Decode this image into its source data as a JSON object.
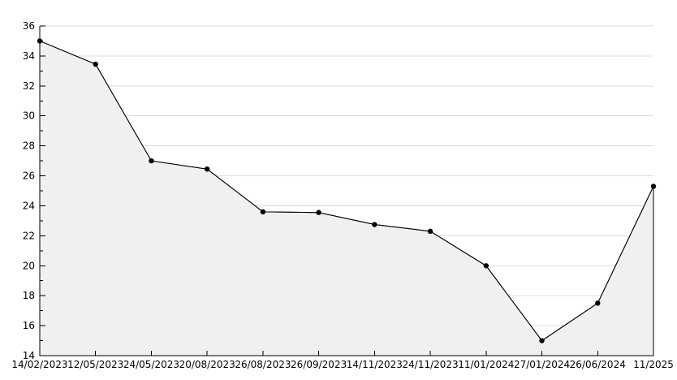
{
  "chart_data": {
    "type": "area",
    "title": "",
    "xlabel": "",
    "ylabel": "",
    "legend": "none",
    "grid": "horizontal-major",
    "x_labels": [
      "14/02/2023",
      "12/05/2023",
      "24/05/2023",
      "20/08/2023",
      "26/08/2023",
      "26/09/2023",
      "14/11/2023",
      "24/11/2023",
      "11/01/2024",
      "27/01/2024",
      "26/06/2024",
      "11/2025"
    ],
    "values": [
      35.0,
      33.45,
      27.0,
      26.45,
      23.6,
      23.55,
      22.75,
      22.3,
      20.0,
      15.0,
      17.5,
      25.3
    ],
    "y_tick_labels": [
      "36",
      "34",
      "32",
      "30",
      "28",
      "26",
      "24",
      "22",
      "20",
      "18",
      "16",
      "14"
    ],
    "ylim": [
      14,
      36
    ],
    "y_major_step": 2,
    "y_minor_step": 1,
    "colors": {
      "background": "#ffffff",
      "area_fill": "#f0f0f0",
      "line": "#000000",
      "marker": "#000000",
      "grid": "#dcdcdc",
      "axis": "#000000",
      "text": "#000000"
    }
  }
}
